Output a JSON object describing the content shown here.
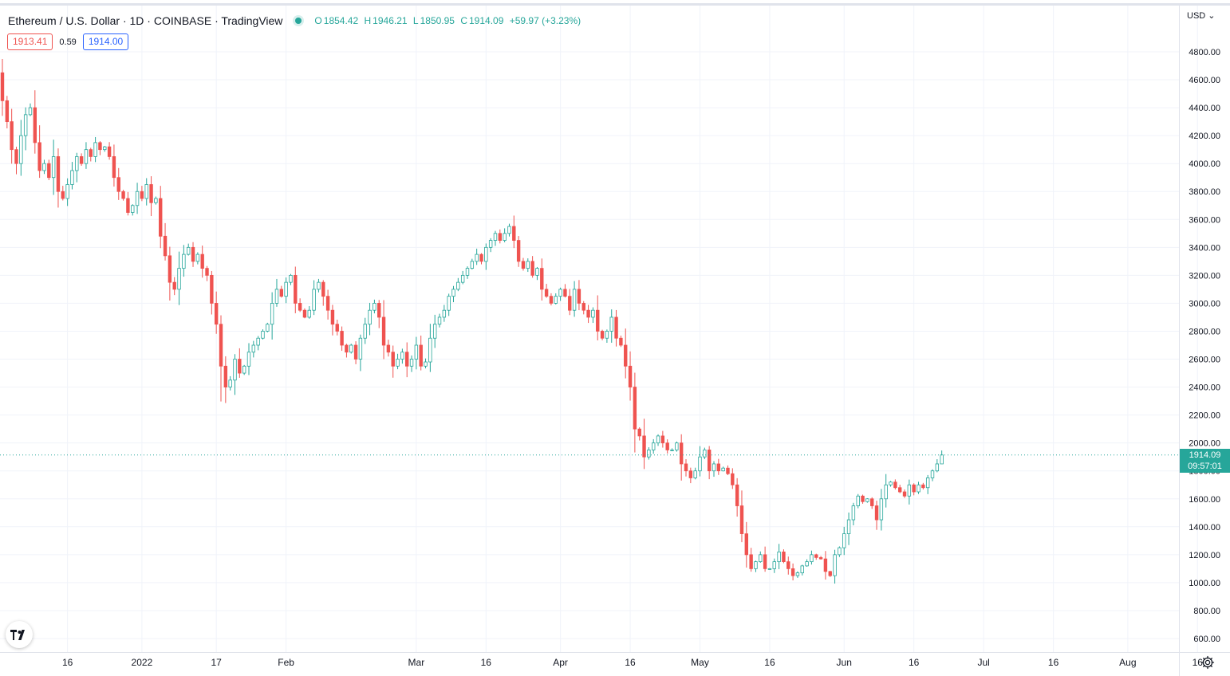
{
  "header": {
    "title": "Ethereum / U.S. Dollar · 1D · COINBASE · TradingView",
    "ohlc": {
      "o_label": "O",
      "o": "1854.42",
      "h_label": "H",
      "h": "1946.21",
      "l_label": "L",
      "l": "1850.95",
      "c_label": "C",
      "c": "1914.09",
      "change": "+59.97 (+3.23%)"
    },
    "bid": "1913.41",
    "spread": "0.59",
    "ask": "1914.00"
  },
  "price_scale": {
    "currency": "USD ⌄"
  },
  "last_price": {
    "value": "1914.09",
    "countdown": "09:57:01"
  },
  "colors": {
    "up": "#26a69a",
    "down": "#ef5350",
    "grid": "#f0f3fa",
    "text": "#131722"
  },
  "chart_data": {
    "type": "candlestick",
    "title": "Ethereum / U.S. Dollar · 1D · COINBASE",
    "ylim": [
      500,
      5000
    ],
    "y_ticks": [
      600,
      800,
      1000,
      1200,
      1400,
      1600,
      1800,
      2000,
      2200,
      2400,
      2600,
      2800,
      3000,
      3200,
      3400,
      3600,
      3800,
      4000,
      4200,
      4400,
      4600,
      4800
    ],
    "x_ticks": [
      {
        "label": "16",
        "day": 14
      },
      {
        "label": "2022",
        "day": 30
      },
      {
        "label": "17",
        "day": 46
      },
      {
        "label": "Feb",
        "day": 61
      },
      {
        "label": "Mar",
        "day": 89
      },
      {
        "label": "16",
        "day": 104
      },
      {
        "label": "Apr",
        "day": 120
      },
      {
        "label": "16",
        "day": 135
      },
      {
        "label": "May",
        "day": 150
      },
      {
        "label": "16",
        "day": 165
      },
      {
        "label": "Jun",
        "day": 181
      },
      {
        "label": "16",
        "day": 196
      },
      {
        "label": "Jul",
        "day": 211
      },
      {
        "label": "16",
        "day": 226
      },
      {
        "label": "Aug",
        "day": 242
      },
      {
        "label": "16",
        "day": 257
      }
    ],
    "first_day": 0,
    "closes": [
      4450,
      4300,
      4100,
      4000,
      4200,
      4350,
      4400,
      4150,
      3950,
      4000,
      3900,
      4050,
      3800,
      3750,
      3850,
      3950,
      4050,
      4000,
      4100,
      4050,
      4150,
      4100,
      4120,
      4050,
      3900,
      3800,
      3750,
      3650,
      3700,
      3800,
      3750,
      3850,
      3720,
      3750,
      3480,
      3340,
      3150,
      3100,
      3250,
      3350,
      3400,
      3300,
      3350,
      3250,
      3200,
      3000,
      2850,
      2550,
      2400,
      2450,
      2600,
      2500,
      2550,
      2650,
      2700,
      2750,
      2800,
      2850,
      3000,
      3100,
      3050,
      3150,
      3200,
      3000,
      2950,
      2900,
      2950,
      3100,
      3150,
      3050,
      2950,
      2850,
      2800,
      2700,
      2650,
      2700,
      2600,
      2750,
      2850,
      2950,
      3000,
      2900,
      2700,
      2650,
      2550,
      2600,
      2650,
      2550,
      2600,
      2700,
      2550,
      2580,
      2750,
      2850,
      2900,
      2950,
      3050,
      3100,
      3150,
      3200,
      3250,
      3300,
      3350,
      3300,
      3400,
      3450,
      3500,
      3450,
      3500,
      3550,
      3450,
      3300,
      3250,
      3300,
      3200,
      3250,
      3100,
      3050,
      3000,
      3050,
      3100,
      3050,
      2950,
      3100,
      3000,
      2950,
      2900,
      2950,
      2800,
      2750,
      2800,
      2900,
      2750,
      2700,
      2550,
      2400,
      2100,
      2050,
      1900,
      1950,
      2000,
      2050,
      2000,
      1950,
      1950,
      2000,
      1850,
      1800,
      1750,
      1800,
      1900,
      1950,
      1800,
      1850,
      1800,
      1820,
      1780,
      1700,
      1550,
      1350,
      1200,
      1100,
      1150,
      1200,
      1100,
      1100,
      1150,
      1220,
      1150,
      1100,
      1050,
      1070,
      1120,
      1150,
      1200,
      1180,
      1170,
      1080,
      1050,
      1200,
      1250,
      1350,
      1450,
      1550,
      1620,
      1580,
      1600,
      1550,
      1450,
      1600,
      1700,
      1720,
      1680,
      1650,
      1620,
      1700,
      1650,
      1700,
      1680,
      1750,
      1800,
      1850,
      1914.09
    ]
  }
}
